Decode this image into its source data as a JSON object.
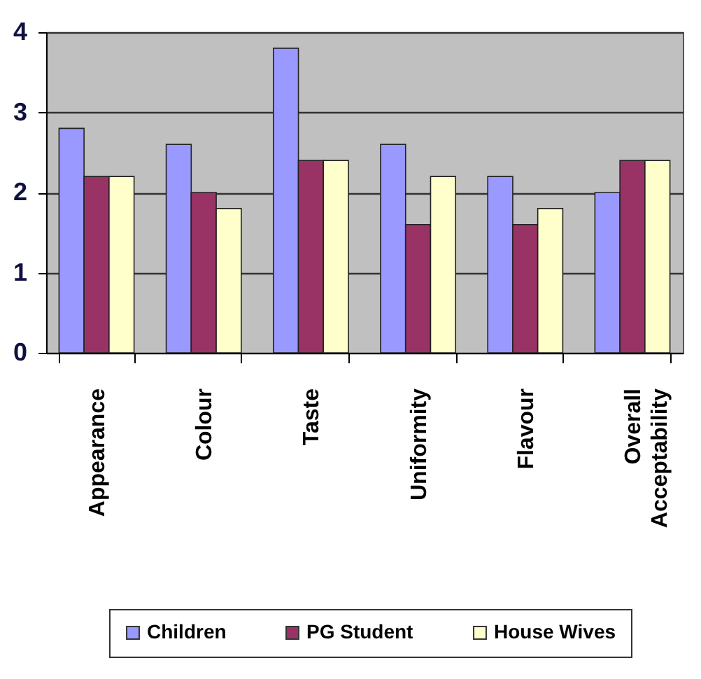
{
  "chart_data": {
    "type": "bar",
    "categories": [
      "Appearance",
      "Colour",
      "Taste",
      "Uniformity",
      "Flavour",
      "Overall Acceptability"
    ],
    "series": [
      {
        "name": "Children",
        "color": "#9999ff",
        "values": [
          2.8,
          2.6,
          3.8,
          2.6,
          2.2,
          2.0
        ]
      },
      {
        "name": "PG Student",
        "color": "#993366",
        "values": [
          2.2,
          2.0,
          2.4,
          1.6,
          1.6,
          2.4
        ]
      },
      {
        "name": "House Wives",
        "color": "#ffffcc",
        "values": [
          2.2,
          1.8,
          2.4,
          2.2,
          1.8,
          2.4
        ]
      }
    ],
    "ylim": [
      0,
      4
    ],
    "yticks": [
      0,
      1,
      2,
      3,
      4
    ],
    "grid": "y",
    "legend": "bottom"
  }
}
